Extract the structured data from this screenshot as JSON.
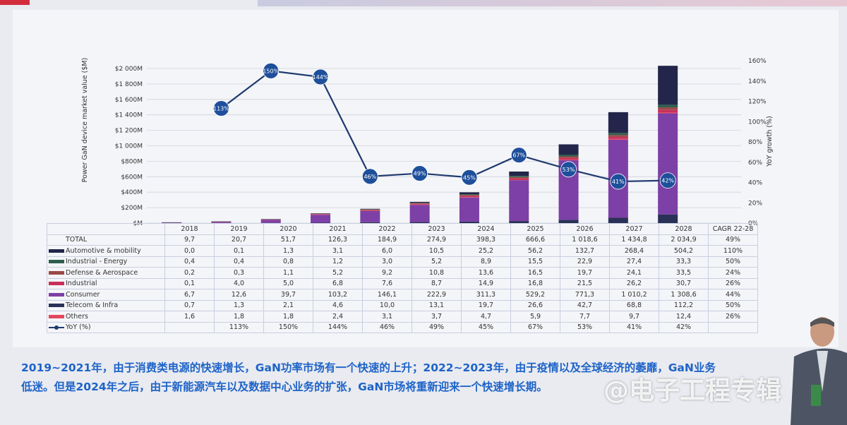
{
  "chart_data": {
    "type": "bar",
    "stacked": true,
    "ylabel": "Power GaN device market value ($M)",
    "y2label": "YoY growth (%)",
    "ylim": [
      0,
      2000
    ],
    "y2lim": [
      0,
      160
    ],
    "yticks": [
      "$M",
      "$200M",
      "$400M",
      "$600M",
      "$800M",
      "$1 000M",
      "$1 200M",
      "$1 400M",
      "$1 600M",
      "$1 800M",
      "$2 000M"
    ],
    "y2ticks": [
      "0%",
      "20%",
      "40%",
      "60%",
      "80%",
      "100%",
      "120%",
      "140%",
      "160%"
    ],
    "corner_label": "$M",
    "categories": [
      "2018",
      "2019",
      "2020",
      "2021",
      "2022",
      "2023",
      "2024",
      "2025",
      "2026",
      "2027",
      "2028"
    ],
    "cagr_header": "CAGR 22-28",
    "total": {
      "label": "TOTAL",
      "values": [
        "9,7",
        "20,7",
        "51,7",
        "126,3",
        "184,9",
        "274,9",
        "398,3",
        "666,6",
        "1 018,6",
        "1 434,8",
        "2 034,9"
      ],
      "cagr": "49%"
    },
    "series": [
      {
        "name": "Automotive & mobility",
        "color": "#23264a",
        "values": [
          0.0,
          0.1,
          1.3,
          3.1,
          6.0,
          10.5,
          25.2,
          56.2,
          132.7,
          268.4,
          504.2
        ],
        "labels": [
          "0,0",
          "0,1",
          "1,3",
          "3,1",
          "6,0",
          "10,5",
          "25,2",
          "56,2",
          "132,7",
          "268,4",
          "504,2"
        ],
        "cagr": "110%"
      },
      {
        "name": "Industrial - Energy",
        "color": "#2e5f50",
        "values": [
          0.4,
          0.4,
          0.8,
          1.2,
          3.0,
          5.2,
          8.9,
          15.5,
          22.9,
          27.4,
          33.3
        ],
        "labels": [
          "0,4",
          "0,4",
          "0,8",
          "1,2",
          "3,0",
          "5,2",
          "8,9",
          "15,5",
          "22,9",
          "27,4",
          "33,3"
        ],
        "cagr": "50%"
      },
      {
        "name": "Defense & Aerospace",
        "color": "#9a4a48",
        "values": [
          0.2,
          0.3,
          1.1,
          5.2,
          9.2,
          10.8,
          13.6,
          16.5,
          19.7,
          24.1,
          33.5
        ],
        "labels": [
          "0,2",
          "0,3",
          "1,1",
          "5,2",
          "9,2",
          "10,8",
          "13,6",
          "16,5",
          "19,7",
          "24,1",
          "33,5"
        ],
        "cagr": "24%"
      },
      {
        "name": "Industrial",
        "color": "#c8305a",
        "values": [
          0.1,
          4.0,
          5.0,
          6.8,
          7.6,
          8.7,
          14.9,
          16.8,
          21.5,
          26.2,
          30.7
        ],
        "labels": [
          "0,1",
          "4,0",
          "5,0",
          "6,8",
          "7,6",
          "8,7",
          "14,9",
          "16,8",
          "21,5",
          "26,2",
          "30,7"
        ],
        "cagr": "26%"
      },
      {
        "name": "Consumer",
        "color": "#7d40a6",
        "values": [
          6.7,
          12.6,
          39.7,
          103.2,
          146.1,
          222.9,
          311.3,
          529.2,
          771.3,
          1010.2,
          1308.6
        ],
        "labels": [
          "6,7",
          "12,6",
          "39,7",
          "103,2",
          "146,1",
          "222,9",
          "311,3",
          "529,2",
          "771,3",
          "1 010,2",
          "1 308,6"
        ],
        "cagr": "44%"
      },
      {
        "name": "Telecom & Infra",
        "color": "#2a3157",
        "values": [
          0.7,
          1.3,
          2.1,
          4.6,
          10.0,
          13.1,
          19.7,
          26.6,
          42.7,
          68.8,
          112.2
        ],
        "labels": [
          "0,7",
          "1,3",
          "2,1",
          "4,6",
          "10,0",
          "13,1",
          "19,7",
          "26,6",
          "42,7",
          "68,8",
          "112,2"
        ],
        "cagr": "50%"
      },
      {
        "name": "Others",
        "color": "#e4475f",
        "values": [
          1.6,
          1.8,
          1.8,
          2.4,
          3.1,
          3.7,
          4.7,
          5.9,
          7.7,
          9.7,
          12.4
        ],
        "labels": [
          "1,6",
          "1,8",
          "1,8",
          "2,4",
          "3,1",
          "3,7",
          "4,7",
          "5,9",
          "7,7",
          "9,7",
          "12,4"
        ],
        "cagr": "26%"
      }
    ],
    "stack_order": [
      "Telecom & Infra",
      "Consumer",
      "Others",
      "Industrial",
      "Defense & Aerospace",
      "Industrial - Energy",
      "Automotive & mobility"
    ],
    "yoy": {
      "name": "YoY (%)",
      "color": "#1f3a6e",
      "values": [
        null,
        113,
        150,
        144,
        46,
        49,
        45,
        67,
        53,
        41,
        42
      ],
      "labels": [
        "",
        "113%",
        "150%",
        "144%",
        "46%",
        "49%",
        "45%",
        "67%",
        "53%",
        "41%",
        "42%"
      ]
    }
  },
  "caption": {
    "line1": "2019~2021年，由于消费类电源的快速增长，GaN功率市场有一个快速的上升；2022~2023年，由于疫情以及全球经济的萎靡，GaN业务",
    "line2": "低迷。但是2024年之后，由于新能源汽车以及数据中心业务的扩张，GaN市场将重新迎来一个快速增长期。"
  },
  "watermark": "@电子工程专辑"
}
